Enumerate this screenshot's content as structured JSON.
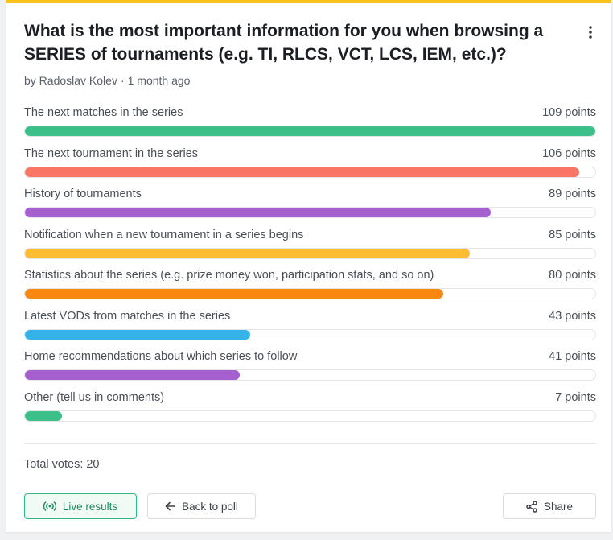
{
  "poll": {
    "title": "What is the most important information for you when browsing a SERIES of tournaments (e.g. TI, RLCS, VCT, LCS, IEM, etc.)?",
    "author": "by Radoslav Kolev",
    "separator": "·",
    "posted": "1 month ago",
    "max_points": 109,
    "options": [
      {
        "label": "The next matches in the series",
        "points": 109,
        "points_text": "109 points",
        "color": "#3dbf8a"
      },
      {
        "label": "The next tournament in the series",
        "points": 106,
        "points_text": "106 points",
        "color": "#fa7566"
      },
      {
        "label": "History of tournaments",
        "points": 89,
        "points_text": "89 points",
        "color": "#a55fcf"
      },
      {
        "label": "Notification when a new tournament in a series begins",
        "points": 85,
        "points_text": "85 points",
        "color": "#fcbd30"
      },
      {
        "label": "Statistics about the series (e.g. prize money won, participation stats, and so on)",
        "points": 80,
        "points_text": "80 points",
        "color": "#f98710"
      },
      {
        "label": "Latest VODs from matches in the series",
        "points": 43,
        "points_text": "43 points",
        "color": "#33b3e8"
      },
      {
        "label": "Home recommendations about which series to follow",
        "points": 41,
        "points_text": "41 points",
        "color": "#a55fcf"
      },
      {
        "label": "Other (tell us in comments)",
        "points": 7,
        "points_text": "7 points",
        "color": "#3dbf8a"
      }
    ],
    "total_votes": "Total votes: 20"
  },
  "buttons": {
    "live": "Live results",
    "back": "Back to poll",
    "share": "Share"
  },
  "icons": {
    "more": "more-vertical-icon",
    "live": "broadcast-icon",
    "back": "arrow-left-icon",
    "share": "share-icon"
  }
}
